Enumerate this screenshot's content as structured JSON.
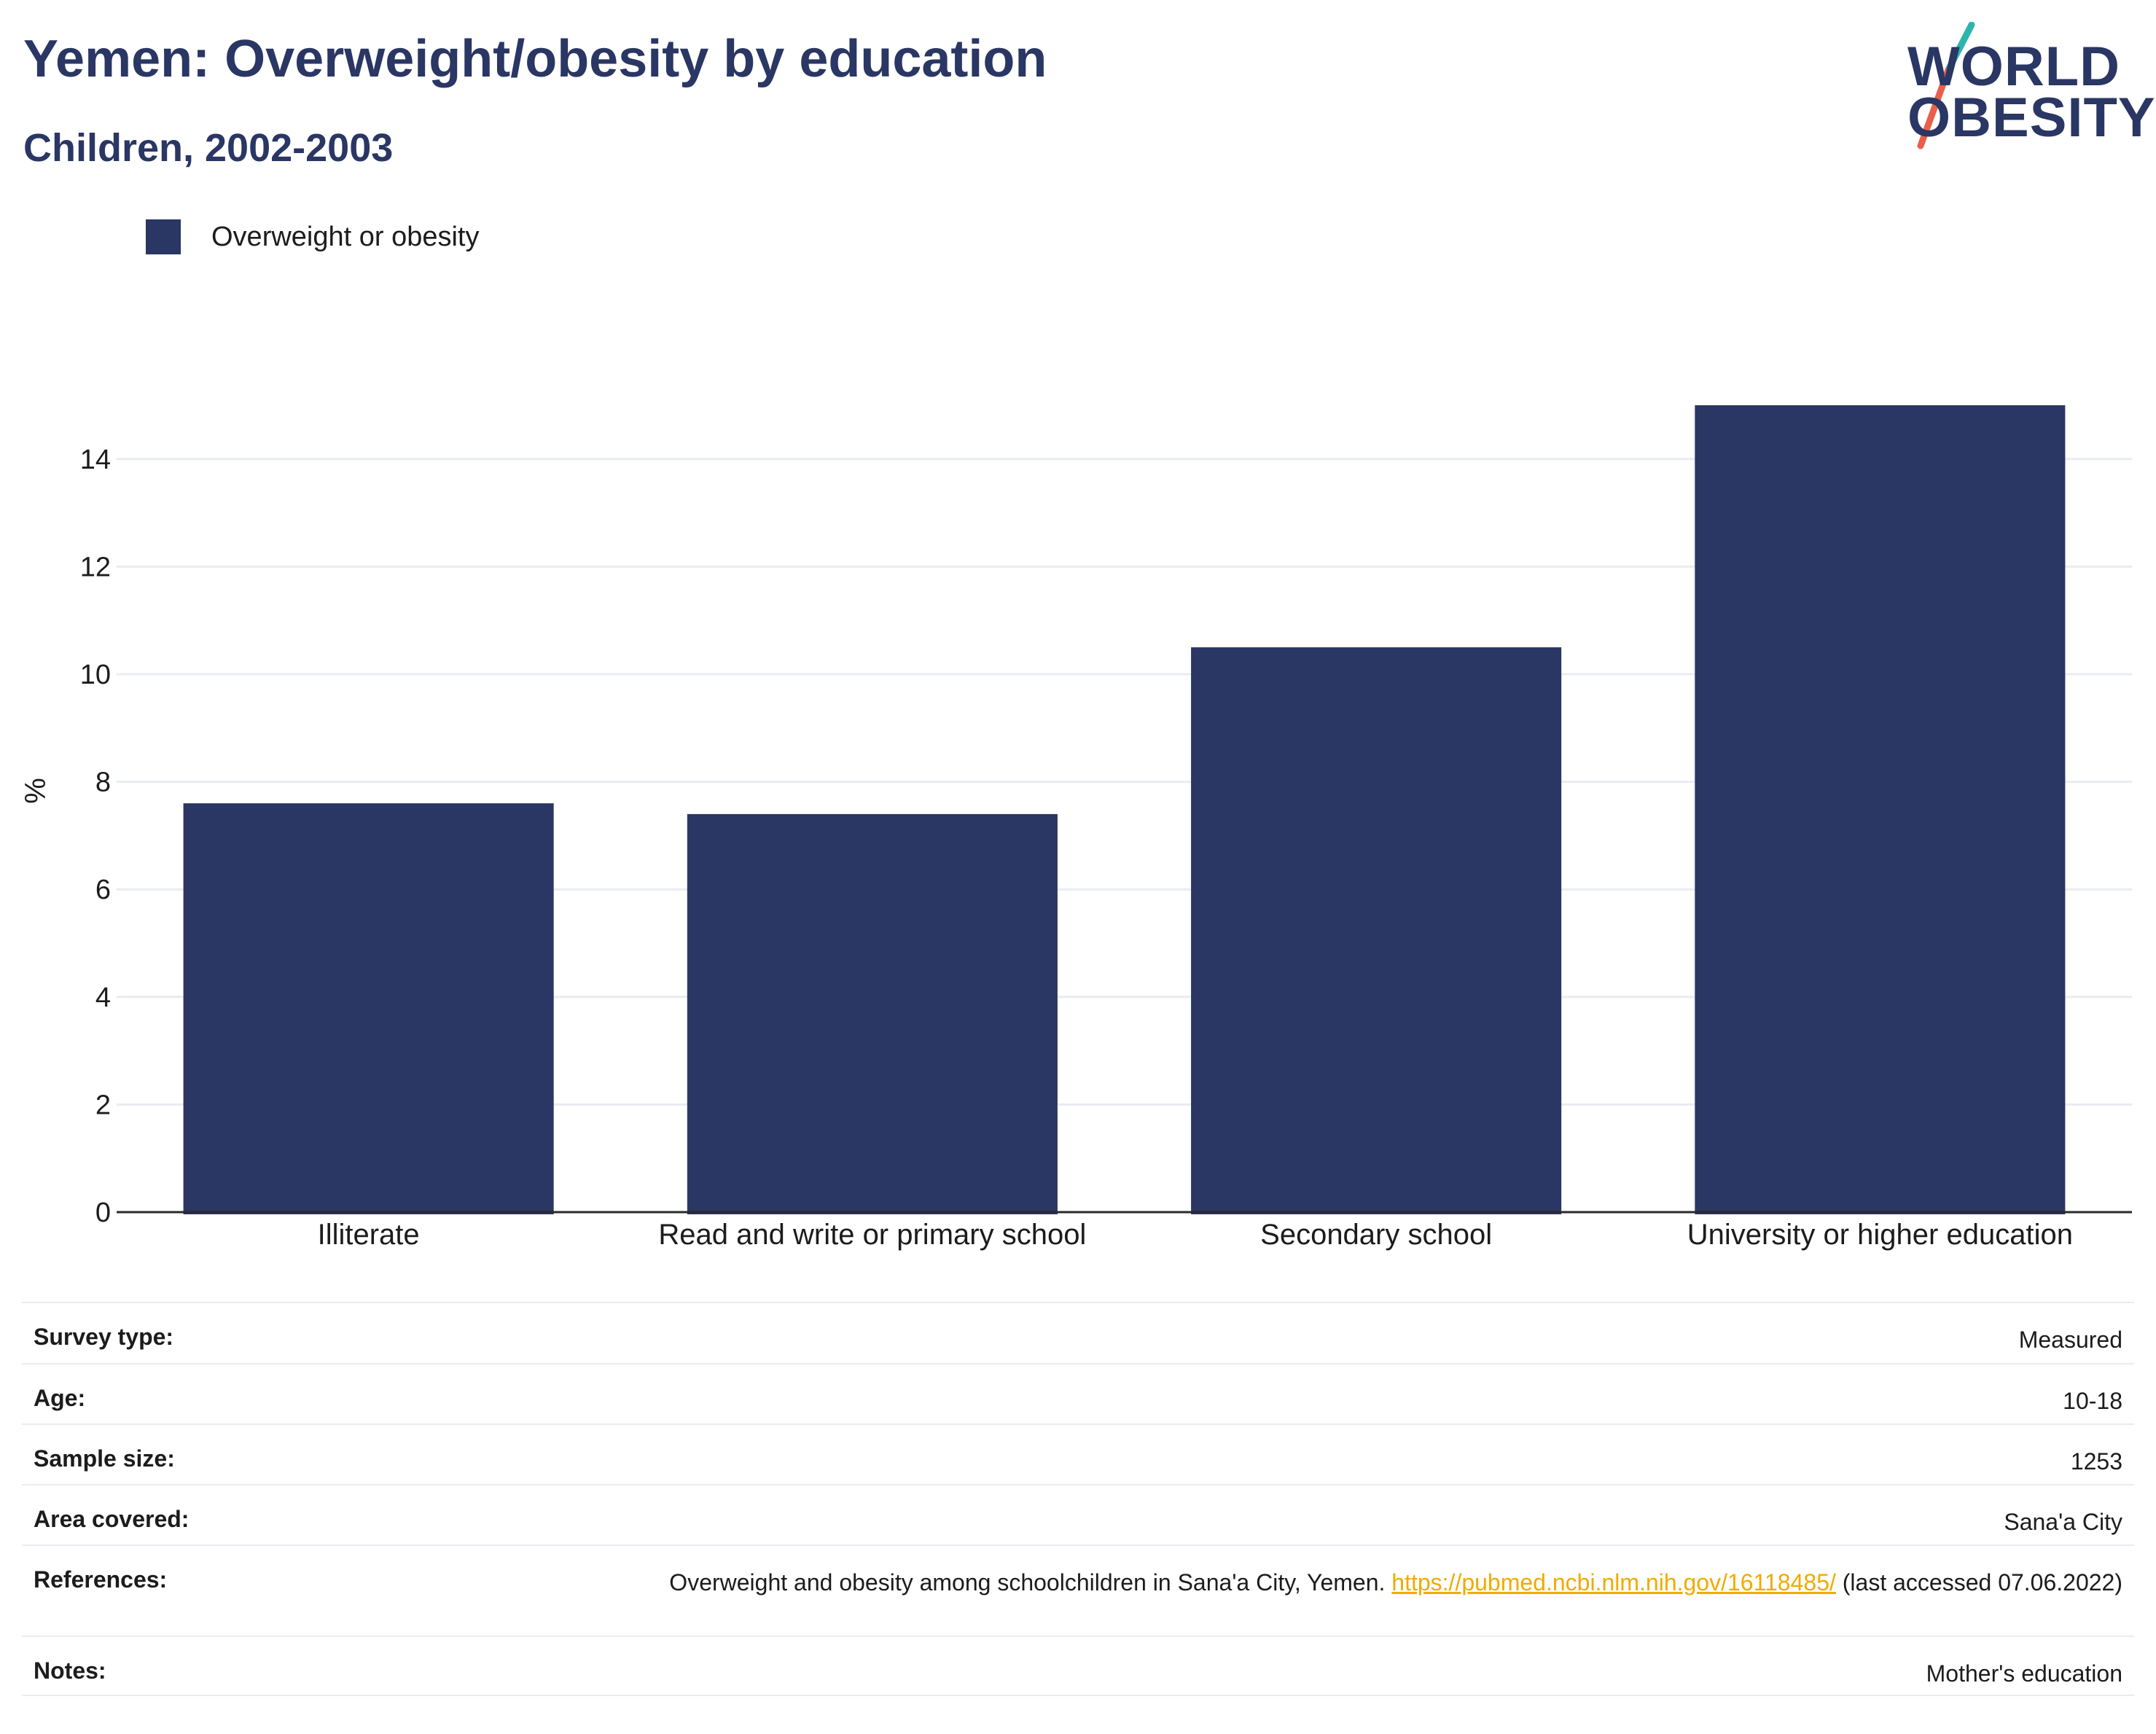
{
  "header": {
    "title": "Yemen: Overweight/obesity by education",
    "subtitle": "Children, 2002-2003"
  },
  "logo": {
    "line1": "WORLD",
    "line2": "OBESITY",
    "colors": {
      "text": "#2a3663",
      "slash_top": "#2bb5ad",
      "slash_bottom": "#e8604c"
    }
  },
  "colors": {
    "bar": "#2a3663",
    "grid": "#e9ecf2",
    "axis": "#2a2a2a",
    "link": "#f0ab00"
  },
  "chart_data": {
    "type": "bar",
    "categories": [
      "Illiterate",
      "Read and write or primary school",
      "Secondary school",
      "University or higher education"
    ],
    "series": [
      {
        "name": "Overweight or obesity",
        "values": [
          7.6,
          7.4,
          10.5,
          15.0
        ]
      }
    ],
    "title": "Yemen: Overweight/obesity by education",
    "subtitle": "Children, 2002-2003",
    "xlabel": "",
    "ylabel": "%",
    "ylim": [
      0,
      16
    ],
    "yticks": [
      0,
      2,
      4,
      6,
      8,
      10,
      12,
      14
    ],
    "grid": true,
    "legend_position": "top-left"
  },
  "info": {
    "rows": [
      {
        "key": "Survey type:",
        "value": "Measured"
      },
      {
        "key": "Age:",
        "value": "10-18"
      },
      {
        "key": "Sample size:",
        "value": "1253"
      },
      {
        "key": "Area covered:",
        "value": "Sana'a City"
      },
      {
        "key": "References:",
        "value_prefix": "Overweight and obesity among schoolchildren in Sana'a City, Yemen. ",
        "link": "https://pubmed.ncbi.nlm.nih.gov/16118485/",
        "value_suffix": " (last accessed 07.06.2022)"
      },
      {
        "key": "Notes:",
        "value": "Mother's education"
      }
    ]
  }
}
